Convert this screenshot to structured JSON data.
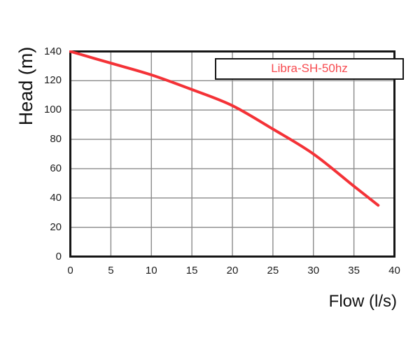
{
  "legend": {
    "label": "Libra-SH-50hz"
  },
  "axes": {
    "x_label": "Flow (l/s)",
    "y_label": "Head (m)"
  },
  "colors": {
    "curve": "#f43237",
    "legend_text": "#f74a4f",
    "grid": "#8a8a8a",
    "frame": "#151515",
    "background": "#ffffff",
    "tick_text": "#1c1c1c"
  },
  "chart_data": {
    "type": "line",
    "title": "",
    "xlabel": "Flow (l/s)",
    "ylabel": "Head (m)",
    "xlim": [
      0,
      40
    ],
    "ylim": [
      0,
      140
    ],
    "x_ticks": [
      0,
      5,
      10,
      15,
      20,
      25,
      30,
      35,
      40
    ],
    "y_ticks": [
      0,
      20,
      40,
      60,
      80,
      100,
      120,
      140
    ],
    "grid": true,
    "legend_position": "top-right",
    "series": [
      {
        "name": "Libra-SH-50hz",
        "color": "#f43237",
        "points": [
          [
            0,
            140
          ],
          [
            5,
            132
          ],
          [
            10,
            124
          ],
          [
            15,
            114
          ],
          [
            20,
            103
          ],
          [
            25,
            87
          ],
          [
            30,
            70
          ],
          [
            35,
            48
          ],
          [
            38,
            35
          ]
        ]
      }
    ]
  }
}
